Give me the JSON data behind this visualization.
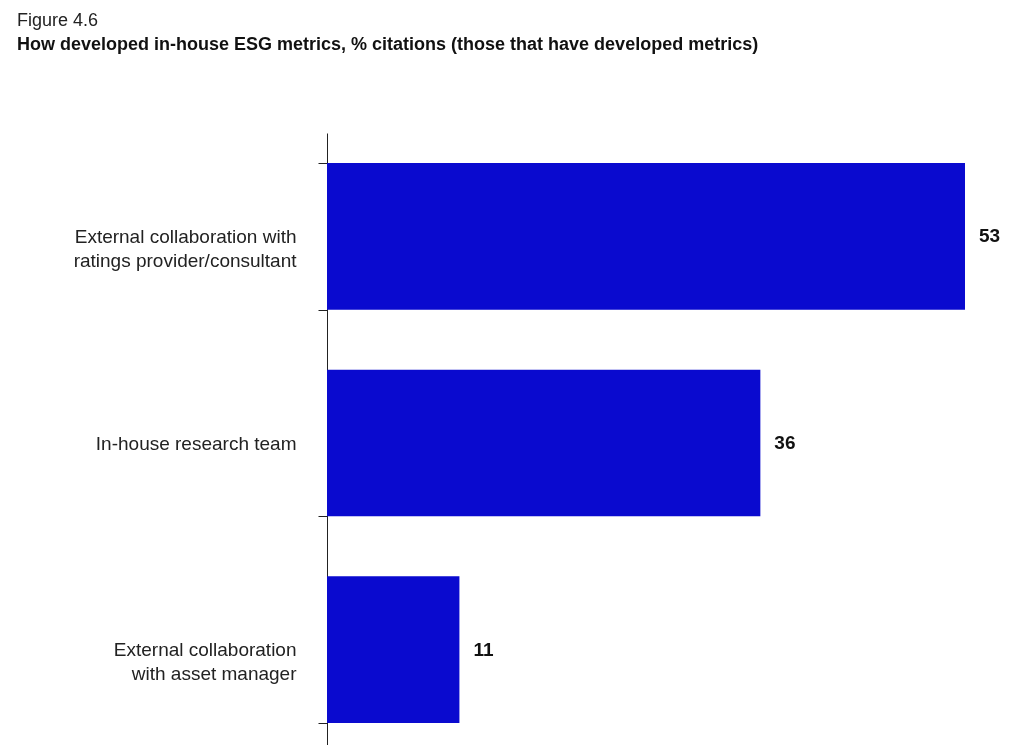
{
  "chart_data": {
    "type": "bar",
    "orientation": "horizontal",
    "title": "Figure 4.6",
    "subtitle": "How developed in-house ESG metrics, % citations (those that have developed metrics)",
    "categories": [
      "External collaboration with ratings provider/consultant",
      "In-house research team",
      "External collaboration with asset manager"
    ],
    "values": [
      53,
      36,
      11
    ],
    "color": "#0a0acf",
    "data_labels": true
  }
}
